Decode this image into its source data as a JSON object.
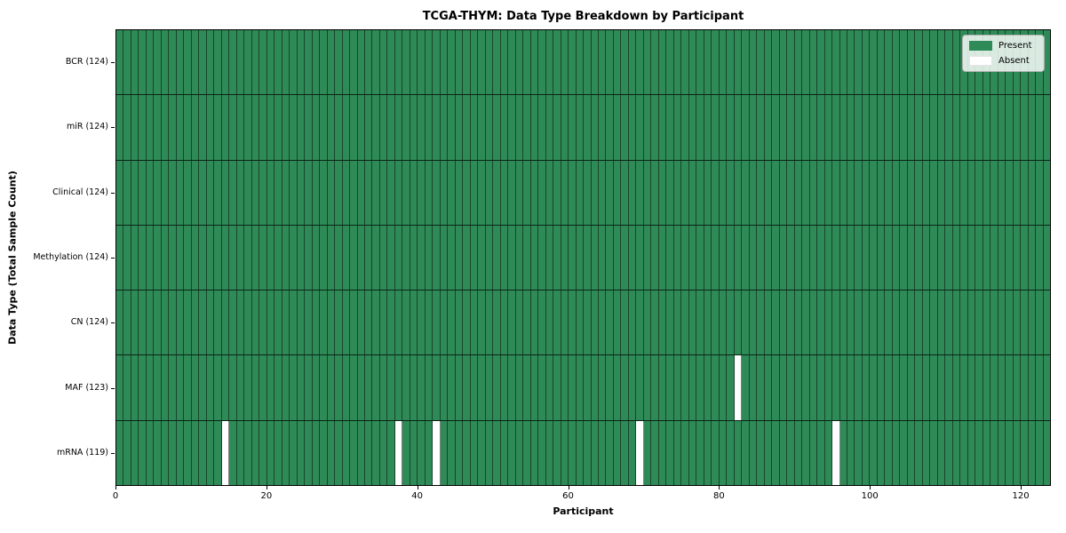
{
  "chart_data": {
    "type": "heatmap",
    "title": "TCGA-THYM: Data Type Breakdown by Participant",
    "xlabel": "Participant",
    "ylabel": "Data Type (Total Sample Count)",
    "n_participants": 124,
    "x_axis_range": [
      0,
      124
    ],
    "x_ticks": [
      0,
      20,
      40,
      60,
      80,
      100,
      120
    ],
    "rows": [
      {
        "name": "BCR",
        "label": "BCR (124)",
        "count": 124,
        "absent_participants": []
      },
      {
        "name": "miR",
        "label": "miR (124)",
        "count": 124,
        "absent_participants": []
      },
      {
        "name": "Clinical",
        "label": "Clinical (124)",
        "count": 124,
        "absent_participants": []
      },
      {
        "name": "Methylation",
        "label": "Methylation (124)",
        "count": 124,
        "absent_participants": []
      },
      {
        "name": "CN",
        "label": "CN (124)",
        "count": 124,
        "absent_participants": []
      },
      {
        "name": "MAF",
        "label": "MAF (123)",
        "count": 123,
        "absent_participants": [
          82
        ]
      },
      {
        "name": "mRNA",
        "label": "mRNA (119)",
        "count": 119,
        "absent_participants": [
          14,
          37,
          42,
          69,
          95
        ]
      }
    ],
    "legend": {
      "position": "upper right",
      "items": [
        {
          "label": "Present",
          "color": "#2e8b57"
        },
        {
          "label": "Absent",
          "color": "#ffffff"
        }
      ]
    },
    "colors": {
      "present": "#2e8b57",
      "absent": "#ffffff",
      "cell_edge": "rgba(0,0,0,0.5)",
      "row_edge": "rgba(0,0,0,0.75)",
      "spine": "#000000"
    },
    "grid": "off"
  }
}
